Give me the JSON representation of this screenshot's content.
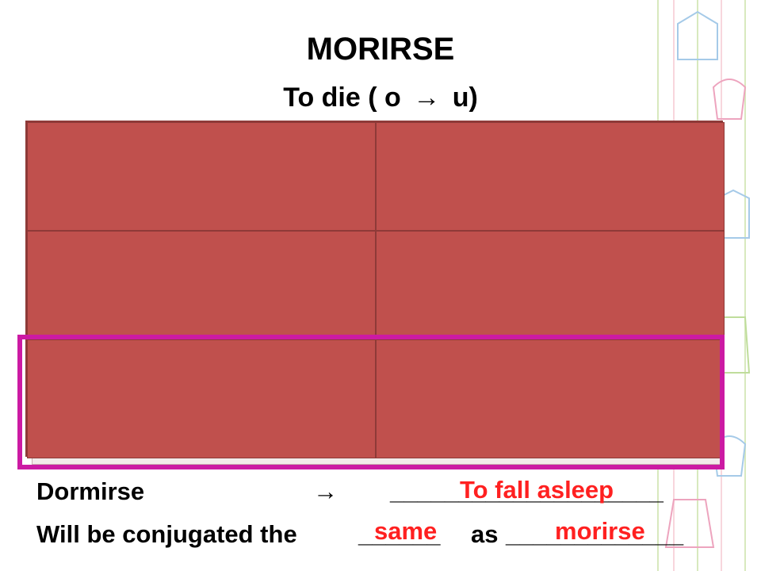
{
  "slide": {
    "title": "MORIRSE",
    "subtitle_left": "To die ( o",
    "subtitle_arrow": "→",
    "subtitle_right": "u)"
  },
  "grid": {
    "rows": 3,
    "columns": 2,
    "fill_color": "#c0504d",
    "highlight_color": "#cc1aa3",
    "highlighted_row": 3
  },
  "bottom": {
    "line1_word": "Dormirse",
    "line1_arrow": "→",
    "line1_blank": "____________________",
    "line1_answer": "To fall asleep",
    "line2_start": "Will be conjugated the",
    "line2_blank1": "______",
    "line2_as": "as",
    "line2_blank2": "_____________",
    "line2_answer1": "same",
    "line2_answer2": "morirse",
    "answer_color": "#ff2020"
  }
}
